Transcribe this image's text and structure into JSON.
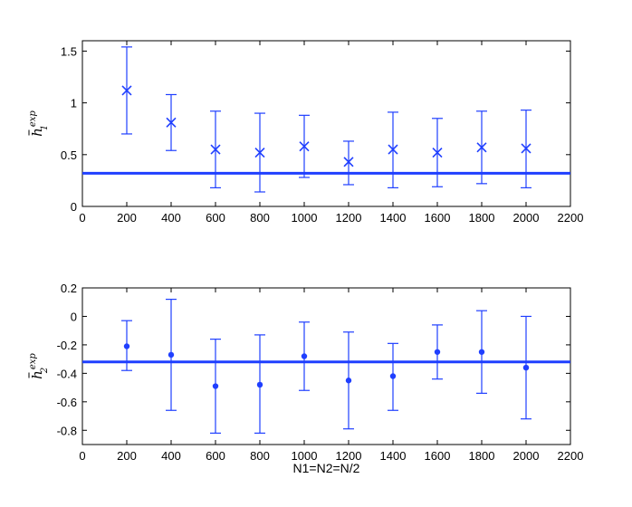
{
  "chart_data": [
    {
      "type": "scatter",
      "marker": "x",
      "ylabel": {
        "main": "h",
        "sup": "exp",
        "sub": "1"
      },
      "xlabel": "",
      "xlim": [
        0,
        2200
      ],
      "ylim": [
        0,
        1.6
      ],
      "xticks": [
        "0",
        "200",
        "400",
        "600",
        "800",
        "1000",
        "1200",
        "1400",
        "1600",
        "1800",
        "2000",
        "2200"
      ],
      "yticks": [
        "0",
        "0.5",
        "1",
        "1.5"
      ],
      "grid": false,
      "reference_line": 0.32,
      "series": [
        {
          "color": "#1f3fff",
          "x": [
            200,
            400,
            600,
            800,
            1000,
            1200,
            1400,
            1600,
            1800,
            2000
          ],
          "y": [
            1.12,
            0.81,
            0.55,
            0.52,
            0.58,
            0.43,
            0.55,
            0.52,
            0.57,
            0.56
          ],
          "err_low": [
            0.7,
            0.54,
            0.18,
            0.14,
            0.28,
            0.21,
            0.18,
            0.19,
            0.22,
            0.18
          ],
          "err_high": [
            1.54,
            1.08,
            0.92,
            0.9,
            0.88,
            0.63,
            0.91,
            0.85,
            0.92,
            0.93
          ]
        }
      ]
    },
    {
      "type": "scatter",
      "marker": "dot",
      "ylabel": {
        "main": "h",
        "sup": "exp",
        "sub": "2"
      },
      "xlabel": "N1=N2=N/2",
      "xlim": [
        0,
        2200
      ],
      "ylim": [
        -0.9,
        0.2
      ],
      "xticks": [
        "0",
        "200",
        "400",
        "600",
        "800",
        "1000",
        "1200",
        "1400",
        "1600",
        "1800",
        "2000",
        "2200"
      ],
      "yticks": [
        "-0.8",
        "-0.6",
        "-0.4",
        "-0.2",
        "0",
        "0.2"
      ],
      "grid": false,
      "reference_line": -0.32,
      "series": [
        {
          "color": "#1f3fff",
          "x": [
            200,
            400,
            600,
            800,
            1000,
            1200,
            1400,
            1600,
            1800,
            2000
          ],
          "y": [
            -0.21,
            -0.27,
            -0.49,
            -0.48,
            -0.28,
            -0.45,
            -0.42,
            -0.25,
            -0.25,
            -0.36
          ],
          "err_low": [
            -0.38,
            -0.66,
            -0.82,
            -0.82,
            -0.52,
            -0.79,
            -0.66,
            -0.44,
            -0.54,
            -0.72
          ],
          "err_high": [
            -0.03,
            0.12,
            -0.16,
            -0.13,
            -0.04,
            -0.11,
            -0.19,
            -0.06,
            0.04,
            0.0
          ]
        }
      ]
    }
  ]
}
